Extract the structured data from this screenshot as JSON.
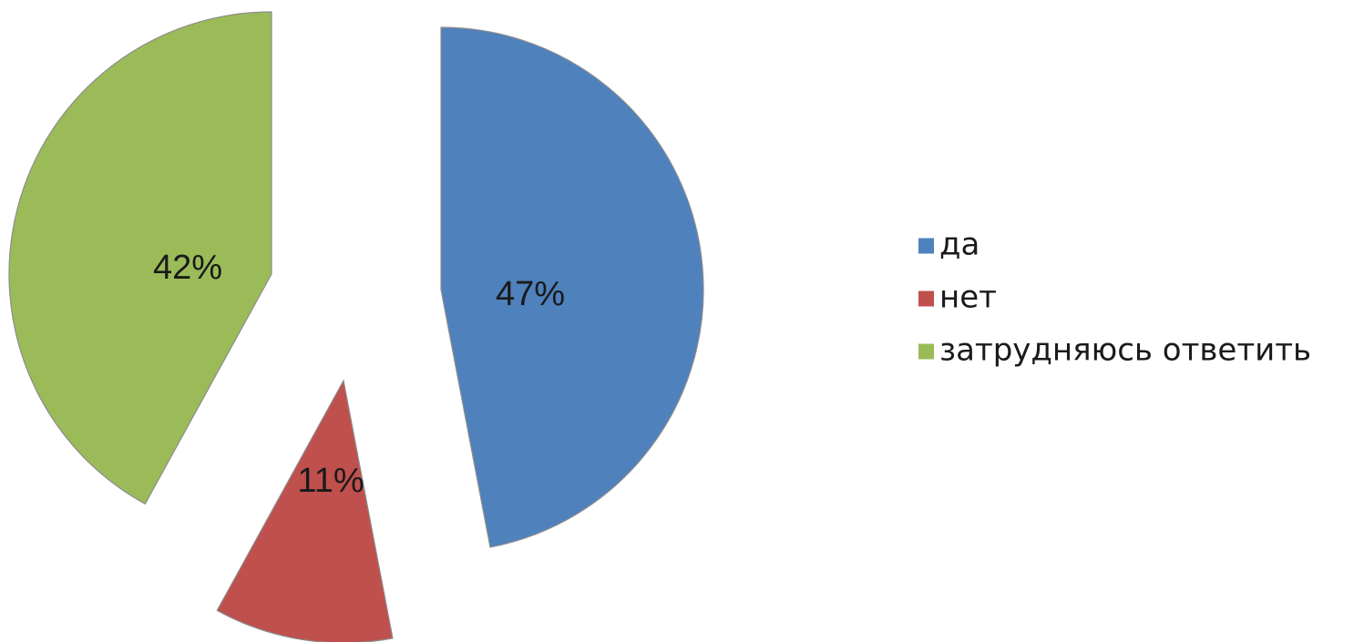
{
  "chart_data": {
    "type": "pie",
    "exploded": true,
    "categories": [
      "да",
      "нет",
      "затрудняюсь ответить"
    ],
    "values": [
      47,
      11,
      42
    ],
    "data_labels": [
      "47%",
      "11%",
      "42%"
    ],
    "colors": [
      "#4f81bd",
      "#c0504d",
      "#9bbb59"
    ],
    "legend": {
      "position": "right",
      "entries": [
        "да",
        "нет",
        "затрудняюсь ответить"
      ]
    },
    "title": ""
  }
}
